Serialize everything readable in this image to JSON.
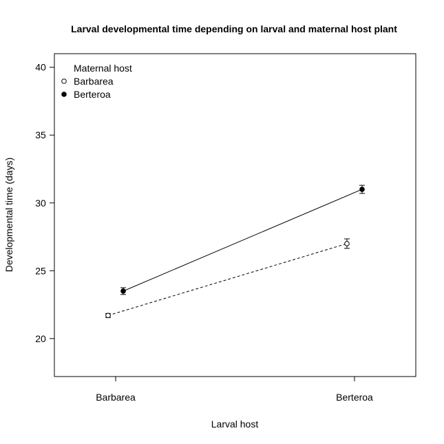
{
  "chart_data": {
    "type": "line",
    "title": "Larval developmental time depending on larval and maternal host plant",
    "xlabel": "Larval host",
    "ylabel": "Developmental time (days)",
    "categories": [
      "Barbarea",
      "Berteroa"
    ],
    "ylim": [
      17.2,
      41
    ],
    "yticks": [
      20,
      25,
      30,
      35,
      40
    ],
    "grid": false,
    "legend": {
      "title": "Maternal host",
      "placement": "top-left"
    },
    "series": [
      {
        "name": "Barbarea",
        "marker": "open-circle",
        "line_style": "dashed",
        "values": [
          21.7,
          27.0
        ],
        "error_low": [
          21.55,
          26.65
        ],
        "error_high": [
          21.85,
          27.35
        ]
      },
      {
        "name": "Berteroa",
        "marker": "filled-circle",
        "line_style": "solid",
        "values": [
          23.5,
          31.0
        ],
        "error_low": [
          23.25,
          30.7
        ],
        "error_high": [
          23.75,
          31.3
        ]
      }
    ]
  }
}
